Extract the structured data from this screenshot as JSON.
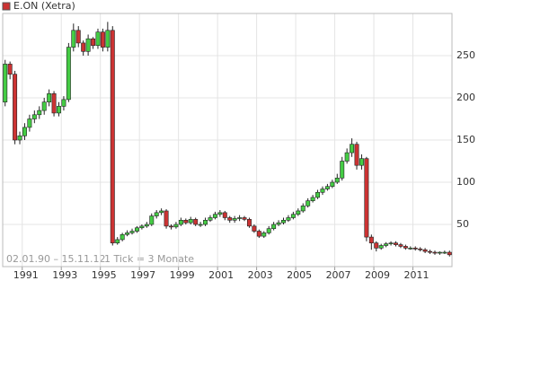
{
  "chart_data": {
    "type": "candlestick",
    "title": "E.ON (Xetra)",
    "date_range": "02.01.90 – 15.11.12",
    "tick_note": "1 Tick = 3 Monate",
    "up_color": "#44cc44",
    "down_color": "#cc3333",
    "grid": true,
    "xlim": [
      1990,
      2013
    ],
    "xticks": [
      1991,
      1993,
      1995,
      1997,
      1999,
      2001,
      2003,
      2005,
      2007,
      2009,
      2011
    ],
    "ylim": [
      0,
      300
    ],
    "yticks": [
      50,
      100,
      150,
      200,
      250
    ],
    "x": [
      1990.125,
      1990.375,
      1990.625,
      1990.875,
      1991.125,
      1991.375,
      1991.625,
      1991.875,
      1992.125,
      1992.375,
      1992.625,
      1992.875,
      1993.125,
      1993.375,
      1993.625,
      1993.875,
      1994.125,
      1994.375,
      1994.625,
      1994.875,
      1995.125,
      1995.375,
      1995.625,
      1995.875,
      1996.125,
      1996.375,
      1996.625,
      1996.875,
      1997.125,
      1997.375,
      1997.625,
      1997.875,
      1998.125,
      1998.375,
      1998.625,
      1998.875,
      1999.125,
      1999.375,
      1999.625,
      1999.875,
      2000.125,
      2000.375,
      2000.625,
      2000.875,
      2001.125,
      2001.375,
      2001.625,
      2001.875,
      2002.125,
      2002.375,
      2002.625,
      2002.875,
      2003.125,
      2003.375,
      2003.625,
      2003.875,
      2004.125,
      2004.375,
      2004.625,
      2004.875,
      2005.125,
      2005.375,
      2005.625,
      2005.875,
      2006.125,
      2006.375,
      2006.625,
      2006.875,
      2007.125,
      2007.375,
      2007.625,
      2007.875,
      2008.125,
      2008.375,
      2008.625,
      2008.875,
      2009.125,
      2009.375,
      2009.625,
      2009.875,
      2010.125,
      2010.375,
      2010.625,
      2010.875,
      2011.125,
      2011.375,
      2011.625,
      2011.875,
      2012.125,
      2012.375,
      2012.625,
      2012.875
    ],
    "open": [
      195,
      240,
      228,
      150,
      155,
      165,
      175,
      180,
      185,
      195,
      205,
      182,
      190,
      198,
      260,
      280,
      265,
      255,
      270,
      262,
      278,
      260,
      280,
      28,
      32,
      38,
      40,
      42,
      46,
      48,
      50,
      60,
      64,
      66,
      48,
      47,
      50,
      55,
      52,
      56,
      50,
      50,
      55,
      58,
      62,
      64,
      58,
      55,
      57,
      58,
      56,
      48,
      42,
      36,
      40,
      45,
      50,
      52,
      55,
      58,
      62,
      66,
      72,
      78,
      82,
      88,
      92,
      95,
      100,
      105,
      125,
      135,
      145,
      120,
      128,
      35,
      28,
      22,
      25,
      27,
      28,
      26,
      24,
      22,
      22,
      21,
      20,
      18,
      17,
      16,
      17,
      17
    ],
    "high": [
      245,
      243,
      232,
      160,
      170,
      180,
      185,
      190,
      200,
      210,
      208,
      195,
      202,
      265,
      288,
      285,
      268,
      275,
      272,
      282,
      282,
      290,
      285,
      35,
      40,
      43,
      45,
      48,
      50,
      53,
      63,
      67,
      69,
      68,
      50,
      53,
      58,
      57,
      59,
      58,
      53,
      58,
      61,
      65,
      67,
      66,
      60,
      60,
      61,
      60,
      58,
      50,
      44,
      42,
      48,
      53,
      55,
      58,
      61,
      65,
      69,
      75,
      81,
      85,
      91,
      95,
      98,
      103,
      110,
      130,
      140,
      152,
      148,
      133,
      130,
      38,
      30,
      27,
      29,
      30,
      30,
      28,
      26,
      24,
      24,
      23,
      22,
      20,
      19,
      18,
      19,
      19
    ],
    "low": [
      190,
      222,
      145,
      145,
      150,
      160,
      170,
      175,
      180,
      190,
      178,
      178,
      185,
      195,
      255,
      260,
      250,
      250,
      258,
      258,
      255,
      255,
      25,
      26,
      30,
      36,
      38,
      40,
      44,
      46,
      48,
      57,
      61,
      45,
      44,
      45,
      48,
      50,
      50,
      48,
      47,
      48,
      53,
      56,
      59,
      55,
      52,
      52,
      54,
      54,
      46,
      40,
      34,
      34,
      38,
      43,
      48,
      50,
      53,
      56,
      60,
      64,
      70,
      76,
      80,
      85,
      90,
      93,
      98,
      102,
      122,
      130,
      115,
      115,
      30,
      20,
      18,
      20,
      23,
      25,
      24,
      22,
      20,
      20,
      19,
      18,
      16,
      15,
      14,
      14,
      15,
      12
    ],
    "close": [
      240,
      228,
      150,
      155,
      165,
      175,
      180,
      185,
      195,
      205,
      182,
      190,
      198,
      260,
      280,
      265,
      255,
      270,
      262,
      278,
      260,
      280,
      28,
      32,
      38,
      40,
      42,
      46,
      48,
      50,
      60,
      64,
      66,
      48,
      47,
      50,
      55,
      52,
      56,
      50,
      50,
      55,
      58,
      62,
      64,
      58,
      55,
      57,
      58,
      56,
      48,
      42,
      36,
      40,
      45,
      50,
      52,
      55,
      58,
      62,
      66,
      72,
      78,
      82,
      88,
      92,
      95,
      100,
      105,
      125,
      135,
      145,
      120,
      128,
      35,
      28,
      22,
      25,
      27,
      28,
      26,
      24,
      22,
      22,
      21,
      20,
      18,
      17,
      16,
      17,
      17,
      14
    ]
  }
}
